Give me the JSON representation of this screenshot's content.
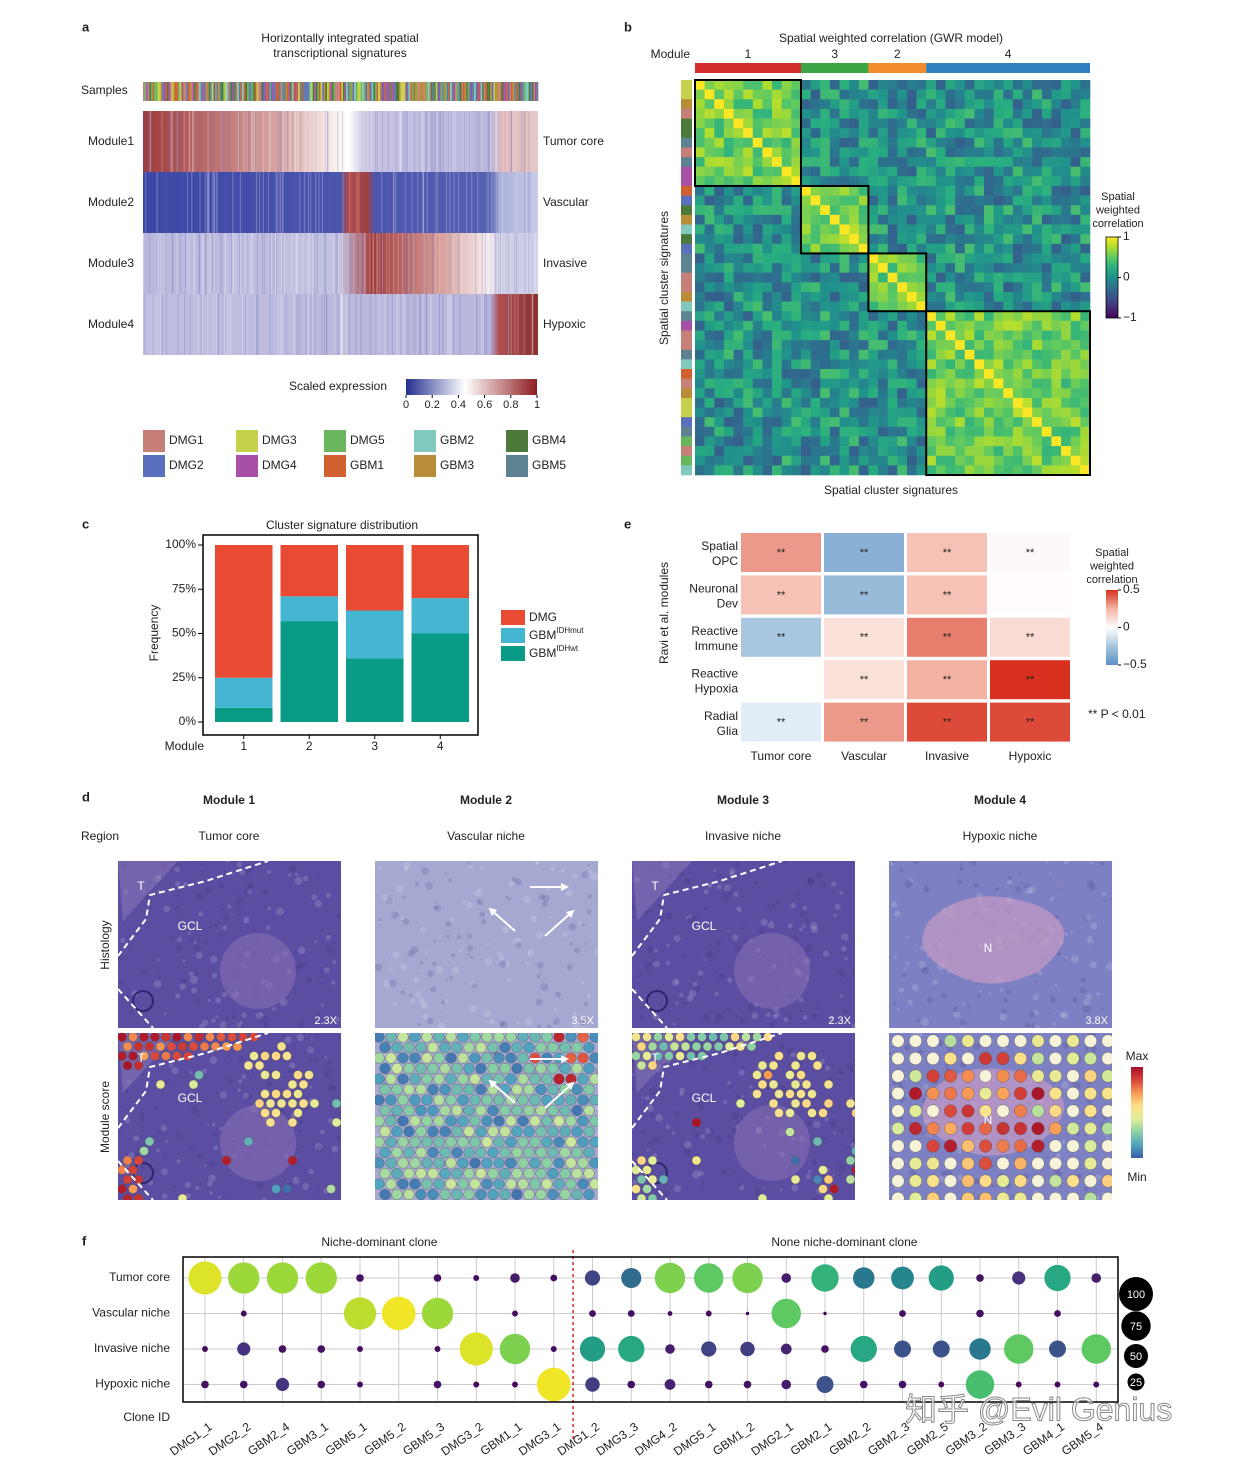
{
  "panel_a": {
    "letter": "a",
    "title": [
      "Horizontally integrated spatial",
      "transcriptional signatures"
    ],
    "samples_label": "Samples",
    "modules": [
      {
        "name": "Module1",
        "signature": "Tumor core"
      },
      {
        "name": "Module2",
        "signature": "Vascular"
      },
      {
        "name": "Module3",
        "signature": "Invasive"
      },
      {
        "name": "Module4",
        "signature": "Hypoxic"
      }
    ],
    "colorbar": {
      "label": "Scaled expression",
      "lim": [
        0,
        1
      ],
      "ticks": [
        0,
        0.2,
        0.4,
        0.6,
        0.8,
        1
      ]
    },
    "samples": [
      {
        "name": "DMG1",
        "color": "#c97f79"
      },
      {
        "name": "DMG2",
        "color": "#5b6fbf"
      },
      {
        "name": "DMG3",
        "color": "#c5d14a"
      },
      {
        "name": "DMG4",
        "color": "#a84fa8"
      },
      {
        "name": "DMG5",
        "color": "#6ab65e"
      },
      {
        "name": "GBM1",
        "color": "#d0612e"
      },
      {
        "name": "GBM2",
        "color": "#7fc9bd"
      },
      {
        "name": "GBM3",
        "color": "#b98c3a"
      },
      {
        "name": "GBM4",
        "color": "#4d7a3a"
      },
      {
        "name": "GBM5",
        "color": "#5d8393"
      }
    ]
  },
  "panel_b": {
    "letter": "b",
    "title": "Spatial weighted correlation (GWR model)",
    "module_label": "Module",
    "modules": [
      {
        "name": "1",
        "color": "#d42b2b",
        "clusters": 11
      },
      {
        "name": "3",
        "color": "#3aa542",
        "clusters": 7
      },
      {
        "name": "2",
        "color": "#f08c2e",
        "clusters": 6
      },
      {
        "name": "4",
        "color": "#2d7fc0",
        "clusters": 17
      }
    ],
    "xlabel": "Spatial cluster signatures",
    "ylabel": "Spatial cluster signatures",
    "colorbar": {
      "title": [
        "Spatial",
        "weighted",
        "correlation"
      ],
      "lim": [
        -1,
        1
      ],
      "ticks": [
        1,
        0,
        {
          "value": -1,
          "label": "−1"
        }
      ]
    }
  },
  "chart_data": [
    {
      "type": "bar",
      "stacked": true,
      "letter": "c",
      "title": "Cluster signature distribution",
      "xlabel": "Module",
      "ylabel": "Frequency",
      "categories": [
        "1",
        "2",
        "3",
        "4"
      ],
      "ylim": [
        0,
        100
      ],
      "yticks": [
        {
          "value": 0,
          "label": "0%"
        },
        {
          "value": 25,
          "label": "25%"
        },
        {
          "value": 50,
          "label": "50%"
        },
        {
          "value": 75,
          "label": "75%"
        },
        {
          "value": 100,
          "label": "100%"
        }
      ],
      "series": [
        {
          "name": "GBM",
          "name_superscript": "IDHwt",
          "color": "#0a9b86",
          "values": [
            8,
            57,
            36,
            50
          ]
        },
        {
          "name": "GBM",
          "name_superscript": "IDHmut",
          "color": "#45b6d1",
          "values": [
            17,
            14,
            27,
            20
          ]
        },
        {
          "name": "DMG",
          "color": "#e84a32",
          "values": [
            75,
            29,
            37,
            30
          ]
        }
      ]
    },
    {
      "type": "heatmap",
      "letter": "e",
      "ylabel": "Ravi et al. modules",
      "rows": [
        [
          "Spatial",
          "OPC"
        ],
        [
          "Neuronal",
          "Dev"
        ],
        [
          "Reactive",
          "Immune"
        ],
        [
          "Reactive",
          "Hypoxia"
        ],
        [
          "Radial",
          "Glia"
        ]
      ],
      "columns": [
        "Tumor core",
        "Vascular",
        "Invasive",
        "Hypoxic"
      ],
      "values": [
        [
          0.3,
          -0.35,
          0.2,
          0.02
        ],
        [
          0.2,
          -0.3,
          0.2,
          0.01
        ],
        [
          -0.25,
          0.1,
          0.35,
          0.12
        ],
        [
          0,
          0.1,
          0.25,
          0.5
        ],
        [
          -0.08,
          0.3,
          0.45,
          0.45
        ]
      ],
      "annotations": [
        [
          "**",
          "**",
          "**",
          "**"
        ],
        [
          "**",
          "**",
          "**",
          null
        ],
        [
          "**",
          "**",
          "**",
          "**"
        ],
        [
          null,
          "**",
          "**",
          "**"
        ],
        [
          "**",
          "**",
          "**",
          "**"
        ]
      ],
      "clim": [
        -0.5,
        0.5
      ],
      "colorbar_title": [
        "Spatial",
        "weighted",
        "correlation"
      ],
      "colorbar_ticks": [
        0.5,
        0,
        {
          "value": -0.5,
          "label": "−0.5"
        }
      ],
      "note": "** P < 0.01"
    },
    {
      "type": "bubble",
      "letter": "f",
      "xlabel": "Clone ID",
      "rows": [
        "Tumor core",
        "Vascular niche",
        "Invasive niche",
        "Hypoxic niche"
      ],
      "groups": [
        {
          "title": "Niche-dominant clone",
          "categories": [
            "DMG1_1",
            "DMG2_2",
            "GBM2_4",
            "GBM3_1",
            "GBM5_1",
            "GBM5_2",
            "GBM5_3",
            "DMG3_2",
            "GBM1_1",
            "DMG3_1"
          ],
          "values": [
            [
              95,
              85,
              85,
              85,
              5,
              null,
              5,
              3,
              8,
              4
            ],
            [
              null,
              3,
              null,
              null,
              90,
              98,
              85,
              null,
              3,
              null
            ],
            [
              3,
              15,
              5,
              5,
              3,
              null,
              3,
              95,
              80,
              3
            ],
            [
              5,
              5,
              15,
              5,
              3,
              null,
              5,
              3,
              3,
              98
            ]
          ]
        },
        {
          "title": "None niche-dominant clone",
          "categories": [
            "DMG1_2",
            "DMG3_3",
            "DMG4_2",
            "DMG5_1",
            "GBM1_2",
            "DMG2_1",
            "GBM2_1",
            "GBM2_2",
            "GBM2_3",
            "GBM2_5",
            "GBM3_2",
            "GBM3_3",
            "GBM4_1",
            "GBM5_4"
          ],
          "values": [
            [
              20,
              35,
              80,
              75,
              80,
              8,
              65,
              40,
              45,
              55,
              5,
              15,
              60,
              8
            ],
            [
              4,
              4,
              2,
              3,
              1,
              75,
              1,
              null,
              4,
              null,
              5,
              null,
              4,
              null
            ],
            [
              55,
              60,
              8,
              20,
              18,
              10,
              5,
              60,
              25,
              25,
              40,
              75,
              25,
              75
            ],
            [
              18,
              5,
              10,
              5,
              5,
              8,
              25,
              5,
              5,
              3,
              70,
              3,
              3,
              3
            ]
          ]
        }
      ],
      "size_legend": [
        100,
        75,
        50,
        25
      ],
      "divider_color": "#d62728"
    }
  ],
  "panel_d": {
    "letter": "d",
    "region_label": "Region",
    "row_labels": [
      "Histology",
      "Module score"
    ],
    "modules": [
      {
        "title": "Module 1",
        "region": "Tumor core",
        "magnification": "2.3X",
        "annotations": [
          "T",
          "GCL"
        ]
      },
      {
        "title": "Module 2",
        "region": "Vascular niche",
        "magnification": "3.5X",
        "annotations": []
      },
      {
        "title": "Module 3",
        "region": "Invasive niche",
        "magnification": "2.3X",
        "annotations": [
          "T",
          "GCL"
        ]
      },
      {
        "title": "Module 4",
        "region": "Hypoxic niche",
        "magnification": "3.8X",
        "annotations": [
          "N"
        ]
      }
    ],
    "colorbar": {
      "max_label": "Max",
      "min_label": "Min"
    }
  },
  "watermark": "知乎 @Evil Genius"
}
